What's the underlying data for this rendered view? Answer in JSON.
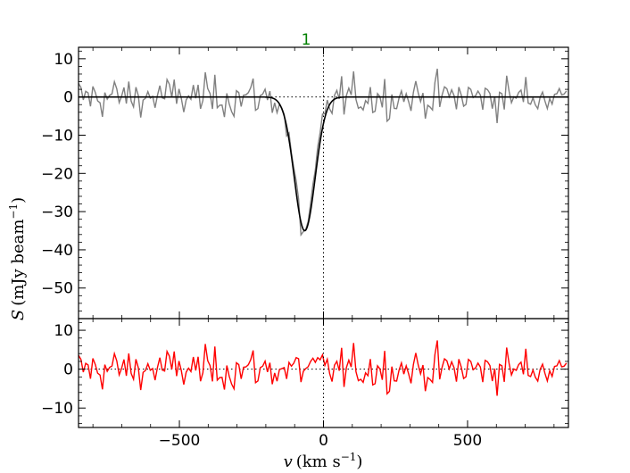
{
  "chart_data": {
    "type": "line",
    "xlabel": "v (km s⁻¹)",
    "ylabel": "S (mJy beam⁻¹)",
    "x_range": [
      -850,
      850
    ],
    "x_ticks": [
      -500,
      0,
      500
    ],
    "x_tick_labels": [
      "−500",
      "0",
      "500"
    ],
    "marker": {
      "x": 0,
      "label": "1",
      "color": "#008000"
    },
    "panels": [
      {
        "name": "spectrum",
        "ylim": [
          -58,
          13
        ],
        "y_ticks": [
          10,
          0,
          -10,
          -20,
          -30,
          -40,
          -50
        ],
        "y_tick_labels": [
          "10",
          "0",
          "−10",
          "−20",
          "−30",
          "−40",
          "−50"
        ],
        "zero_line": "dotted",
        "series": [
          {
            "kind": "data",
            "color": "#808080",
            "noise_sigma_mJy": 3,
            "min_point": {
              "x": -55,
              "y": -39
            }
          },
          {
            "kind": "gaussian-fit",
            "color": "#000000",
            "center": -65,
            "fwhm": 85,
            "depth": -35
          }
        ]
      },
      {
        "name": "residuals",
        "ylim": [
          -15,
          13
        ],
        "y_ticks": [
          10,
          0,
          -10
        ],
        "y_tick_labels": [
          "10",
          "0",
          "−10"
        ],
        "zero_line": "dotted",
        "series": [
          {
            "kind": "residual",
            "color": "#ff0000",
            "noise_sigma_mJy": 3
          }
        ]
      }
    ]
  }
}
